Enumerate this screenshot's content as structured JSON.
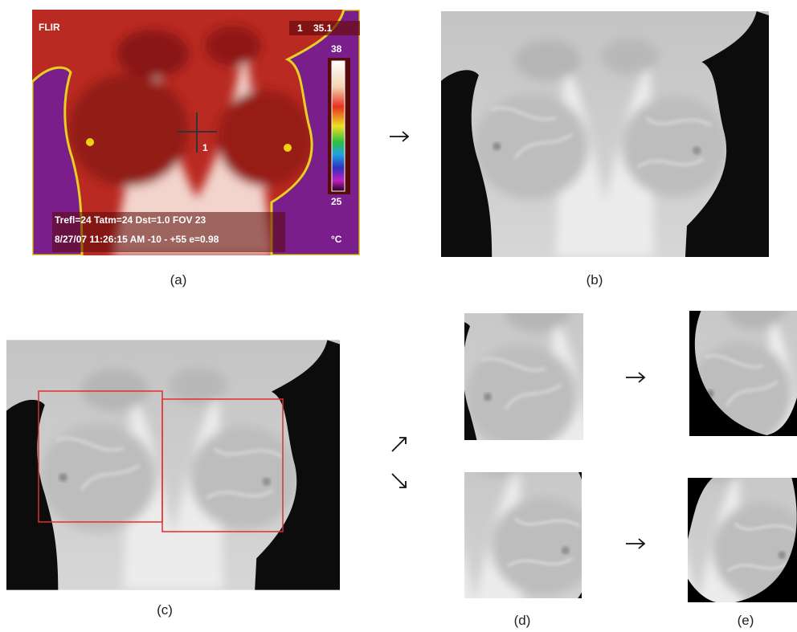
{
  "panels": {
    "a": {
      "label": "(a)",
      "overlay": {
        "brand": "FLIR",
        "spot_marker": "1",
        "spot_value": "35.1",
        "scale_max": "38",
        "scale_min": "25",
        "cross_marker": "1",
        "params": "Trefl=24 Tatm=24 Dst=1.0 FOV 23",
        "datetime": "8/27/07 11:26:15 AM -10 - +55 e=0.98",
        "unit": "°C"
      }
    },
    "b": {
      "label": "(b)"
    },
    "c": {
      "label": "(c)"
    },
    "d": {
      "label": "(d)"
    },
    "e": {
      "label": "(e)"
    }
  }
}
